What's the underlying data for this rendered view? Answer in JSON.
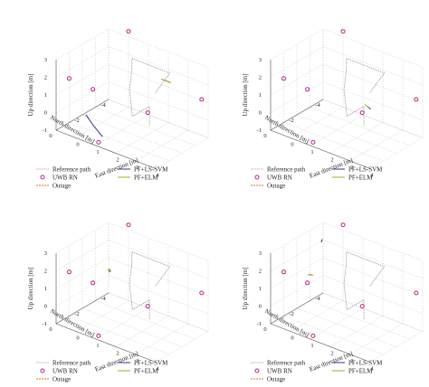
{
  "legend_labels": {
    "reference": "Reference path",
    "uwb": "UWB RN",
    "outage": "Outage",
    "lssvm": "PF+LS-SVM",
    "elm": "PF+ELM"
  },
  "axis_labels": {
    "x": "East direction [m]",
    "y": "North direction [m]",
    "z": "Up direction [m]"
  },
  "colors": {
    "reference": "#8a8a8a",
    "uwb": "#c0208a",
    "outage": "#e07020",
    "lssvm": "#303090",
    "elm": "#90b030",
    "grid": "#c8c8c8"
  },
  "chart_data": [
    {
      "type": "scatter",
      "panel": "top-left",
      "xlabel": "East direction [m]",
      "ylabel": "North direction [m]",
      "zlabel": "Up direction [m]",
      "xlim": [
        -1,
        4
      ],
      "ylim": [
        -4,
        0
      ],
      "zlim": [
        -1,
        3
      ],
      "xticks": [
        "0",
        "1",
        "2",
        "3",
        "4"
      ],
      "yticks": [
        "0",
        "-2",
        "-4"
      ],
      "zticks": [
        "-1",
        "0",
        "1",
        "2",
        "3"
      ],
      "uwb_rn": [
        [
          0,
          -4,
          3.3
        ],
        [
          -1,
          -1,
          1.5
        ],
        [
          3.6,
          0,
          2.0
        ],
        [
          4,
          -3.5,
          1.4
        ],
        [
          -1,
          -2.8,
          0.1
        ],
        [
          1,
          -0.2,
          -0.9
        ]
      ],
      "reference_path": [
        [
          2.5,
          -1.8,
          0.0
        ],
        [
          2.5,
          -1.8,
          1.1
        ],
        [
          2.5,
          -0.5,
          1.1
        ],
        [
          1.5,
          -1.8,
          1.6
        ],
        [
          0.5,
          -3.5,
          1.6
        ],
        [
          0.5,
          -3.5,
          2.2
        ],
        [
          2.4,
          -3.5,
          2.2
        ],
        [
          2.8,
          -1.8,
          2.0
        ]
      ],
      "series": [
        {
          "name": "PF+LS-SVM",
          "points": [
            [
              0.1,
              -0.6,
              0.1
            ],
            [
              0.6,
              -0.4,
              -0.2
            ],
            [
              1.2,
              -0.2,
              -0.5
            ]
          ]
        },
        {
          "name": "PF+ELM",
          "points": [
            [
              1.9,
              -3.6,
              1.6
            ],
            [
              2.4,
              -3.6,
              1.6
            ]
          ]
        }
      ],
      "outage": [
        [
          2.1,
          -3.6,
          1.6
        ],
        [
          2.3,
          -3.6,
          1.6
        ]
      ],
      "legend": "below"
    },
    {
      "type": "scatter",
      "panel": "top-right",
      "xlabel": "East direction [m]",
      "ylabel": "North direction [m]",
      "zlabel": "Up direction [m]",
      "xlim": [
        -1,
        4
      ],
      "ylim": [
        -4,
        0
      ],
      "zlim": [
        -1,
        3
      ],
      "xticks": [
        "0",
        "1",
        "2",
        "3",
        "4"
      ],
      "yticks": [
        "0",
        "-2",
        "-4"
      ],
      "zticks": [
        "-1",
        "0",
        "1",
        "2",
        "3"
      ],
      "uwb_rn": [
        [
          0,
          -4,
          3.3
        ],
        [
          -1,
          -1,
          1.5
        ],
        [
          3.6,
          0,
          2.0
        ],
        [
          4,
          -3.5,
          1.4
        ],
        [
          -1,
          -2.8,
          0.1
        ],
        [
          1,
          -0.2,
          -0.9
        ]
      ],
      "reference_path": [
        [
          2.5,
          -1.8,
          0.0
        ],
        [
          2.5,
          -1.8,
          1.1
        ],
        [
          2.5,
          -0.5,
          1.1
        ],
        [
          1.5,
          -1.8,
          1.6
        ],
        [
          0.5,
          -3.5,
          1.6
        ],
        [
          0.5,
          -3.5,
          2.2
        ],
        [
          2.4,
          -3.5,
          2.2
        ],
        [
          2.8,
          -1.8,
          2.0
        ]
      ],
      "series": [
        {
          "name": "PF+LS-SVM",
          "points": [
            [
              3.3,
              -0.8,
              1.9
            ],
            [
              3.5,
              -0.8,
              1.8
            ]
          ]
        },
        {
          "name": "PF+ELM",
          "points": [
            [
              3.2,
              -0.8,
              1.95
            ],
            [
              3.4,
              -0.8,
              1.85
            ]
          ]
        }
      ],
      "outage": [
        [
          3.3,
          -0.8,
          1.9
        ]
      ],
      "legend": "below"
    },
    {
      "type": "scatter",
      "panel": "bottom-left",
      "xlabel": "East direction [m]",
      "ylabel": "North direction [m]",
      "zlabel": "Up direction [m]",
      "xlim": [
        -1,
        4
      ],
      "ylim": [
        -4,
        0
      ],
      "zlim": [
        -1,
        3
      ],
      "xticks": [
        "0",
        "1",
        "2",
        "3",
        "4"
      ],
      "yticks": [
        "0",
        "-2",
        "-4"
      ],
      "zticks": [
        "-1",
        "0",
        "1",
        "2",
        "3"
      ],
      "uwb_rn": [
        [
          0,
          -4,
          3.3
        ],
        [
          -1,
          -1,
          1.5
        ],
        [
          3.6,
          0,
          2.0
        ],
        [
          4,
          -3.5,
          1.4
        ],
        [
          -1,
          -2.8,
          0.1
        ],
        [
          1,
          -0.2,
          -0.9
        ]
      ],
      "reference_path": [
        [
          2.5,
          -1.8,
          0.0
        ],
        [
          2.5,
          -1.8,
          1.1
        ],
        [
          2.5,
          -0.5,
          1.1
        ],
        [
          1.5,
          -1.8,
          1.6
        ],
        [
          0.5,
          -3.5,
          1.6
        ],
        [
          0.5,
          -3.5,
          2.2
        ],
        [
          2.4,
          -3.5,
          2.2
        ],
        [
          2.8,
          -1.8,
          2.0
        ]
      ],
      "series": [
        {
          "name": "PF+LS-SVM",
          "points": [
            [
              0.1,
              -2.4,
              1.35
            ],
            [
              0.1,
              -2.4,
              1.55
            ]
          ]
        },
        {
          "name": "PF+ELM",
          "points": [
            [
              0.0,
              -2.4,
              1.45
            ],
            [
              0.2,
              -2.4,
              1.45
            ]
          ]
        }
      ],
      "outage": [
        [
          0.05,
          -2.4,
          1.4
        ],
        [
          0.15,
          -2.4,
          1.5
        ]
      ],
      "legend": "below"
    },
    {
      "type": "scatter",
      "panel": "bottom-right",
      "xlabel": "East direction [m]",
      "ylabel": "North direction [m]",
      "zlabel": "Up direction [m]",
      "xlim": [
        -1,
        4
      ],
      "ylim": [
        -4,
        0
      ],
      "zlim": [
        -1,
        3
      ],
      "xticks": [
        "0",
        "1",
        "2",
        "3",
        "4"
      ],
      "yticks": [
        "0",
        "-2",
        "-4"
      ],
      "zticks": [
        "-1",
        "0",
        "1",
        "2",
        "3"
      ],
      "uwb_rn": [
        [
          0,
          -4,
          3.3
        ],
        [
          -1,
          -1,
          1.5
        ],
        [
          3.6,
          0,
          2.0
        ],
        [
          4,
          -3.5,
          1.4
        ],
        [
          -1,
          -2.8,
          0.1
        ],
        [
          1,
          -0.2,
          -0.9
        ]
      ],
      "reference_path": [
        [
          2.5,
          -1.8,
          0.0
        ],
        [
          2.5,
          -1.8,
          1.1
        ],
        [
          2.5,
          -0.5,
          1.1
        ],
        [
          1.5,
          -1.8,
          1.6
        ],
        [
          0.5,
          -3.5,
          1.6
        ],
        [
          0.5,
          -3.5,
          2.2
        ],
        [
          2.4,
          -3.5,
          2.2
        ],
        [
          2.8,
          -1.8,
          2.0
        ]
      ],
      "series": [
        {
          "name": "PF+LS-SVM",
          "points": [
            [
              -0.3,
              -2.8,
              2.7
            ],
            [
              -0.25,
              -2.8,
              2.9
            ]
          ]
        },
        {
          "name": "PF+ELM",
          "points": [
            [
              -0.6,
              -2.2,
              1.0
            ],
            [
              -0.3,
              -2.2,
              1.1
            ]
          ]
        }
      ],
      "outage": [
        [
          -0.5,
          -2.2,
          1.05
        ],
        [
          -0.4,
          -2.2,
          1.1
        ]
      ],
      "legend": "below"
    }
  ]
}
